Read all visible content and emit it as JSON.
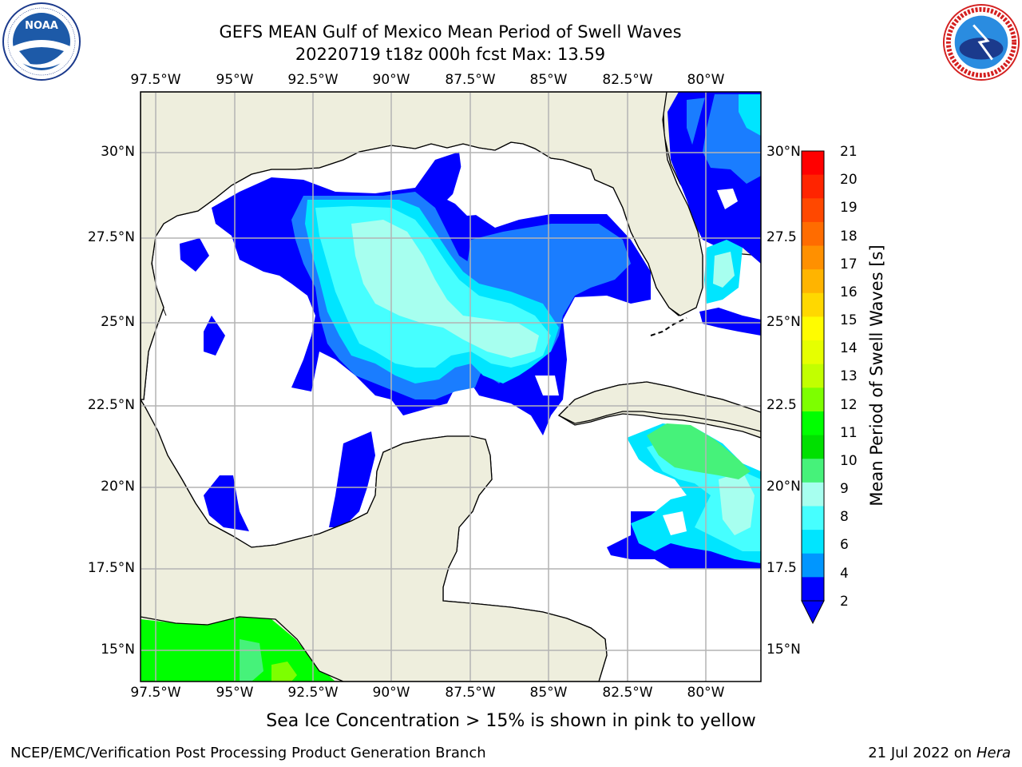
{
  "title": {
    "line1": "GEFS MEAN Gulf of Mexico Mean Period of Swell Waves",
    "line2": "20220719 t18z 000h fcst   Max: 13.59"
  },
  "logos": {
    "left": "noaa-logo",
    "right": "nws-logo",
    "left_ring_text": "NATIONAL OCEANIC AND ATMOSPHERIC ADMINISTRATION · U.S. DEPARTMENT OF COMMERCE",
    "right_ring_text": "NATIONAL WEATHER SERVICE"
  },
  "noaa_text": "NOAA",
  "axes": {
    "x_ticks_top": [
      "97.5°W",
      "95°W",
      "92.5°W",
      "90°W",
      "87.5°W",
      "85°W",
      "82.5°W",
      "80°W"
    ],
    "x_ticks_bottom": [
      "97.5°W",
      "95°W",
      "92.5°W",
      "90°W",
      "87.5°W",
      "85°W",
      "82.5°W",
      "80°W"
    ],
    "y_ticks_left": [
      "30°N",
      "27.5°N",
      "25°N",
      "22.5°N",
      "20°N",
      "17.5°N",
      "15°N"
    ],
    "y_ticks_right": [
      "30°N",
      "27.5",
      "25°N",
      "22.5",
      "20°N",
      "17.5",
      "15°N"
    ]
  },
  "colorbar": {
    "label": "Mean Period of Swell Waves [s]",
    "ticks": [
      "21",
      "20",
      "19",
      "18",
      "17",
      "16",
      "15",
      "14",
      "13",
      "12",
      "11",
      "10",
      "9",
      "8",
      "6",
      "4",
      "2"
    ],
    "colors": [
      "#ff0000",
      "#ff2400",
      "#ff4800",
      "#ff6c00",
      "#ff9000",
      "#ffb400",
      "#ffd800",
      "#fffc00",
      "#e6ff00",
      "#c2ff00",
      "#7dff00",
      "#00ff00",
      "#00e000",
      "#46f27a",
      "#a7ffef",
      "#46ffff",
      "#00e5ff",
      "#0096ff",
      "#0000ff"
    ]
  },
  "note": "Sea Ice Concentration > 15% is shown in pink to yellow",
  "footer": {
    "left": "NCEP/EMC/Verification Post Processing Product Generation Branch",
    "right_prefix": "21 Jul 2022 on ",
    "right_machine": "Hera"
  },
  "colors": {
    "land": "#eeeedd",
    "grid": "#b4b4b4",
    "level_2": "#0000ff",
    "level_4": "#1a7dff",
    "level_6": "#00e5ff",
    "level_8": "#46ffff",
    "level_9": "#a7ffef",
    "level_10": "#46f27a",
    "level_11": "#00ff00",
    "level_12": "#7dff00"
  }
}
